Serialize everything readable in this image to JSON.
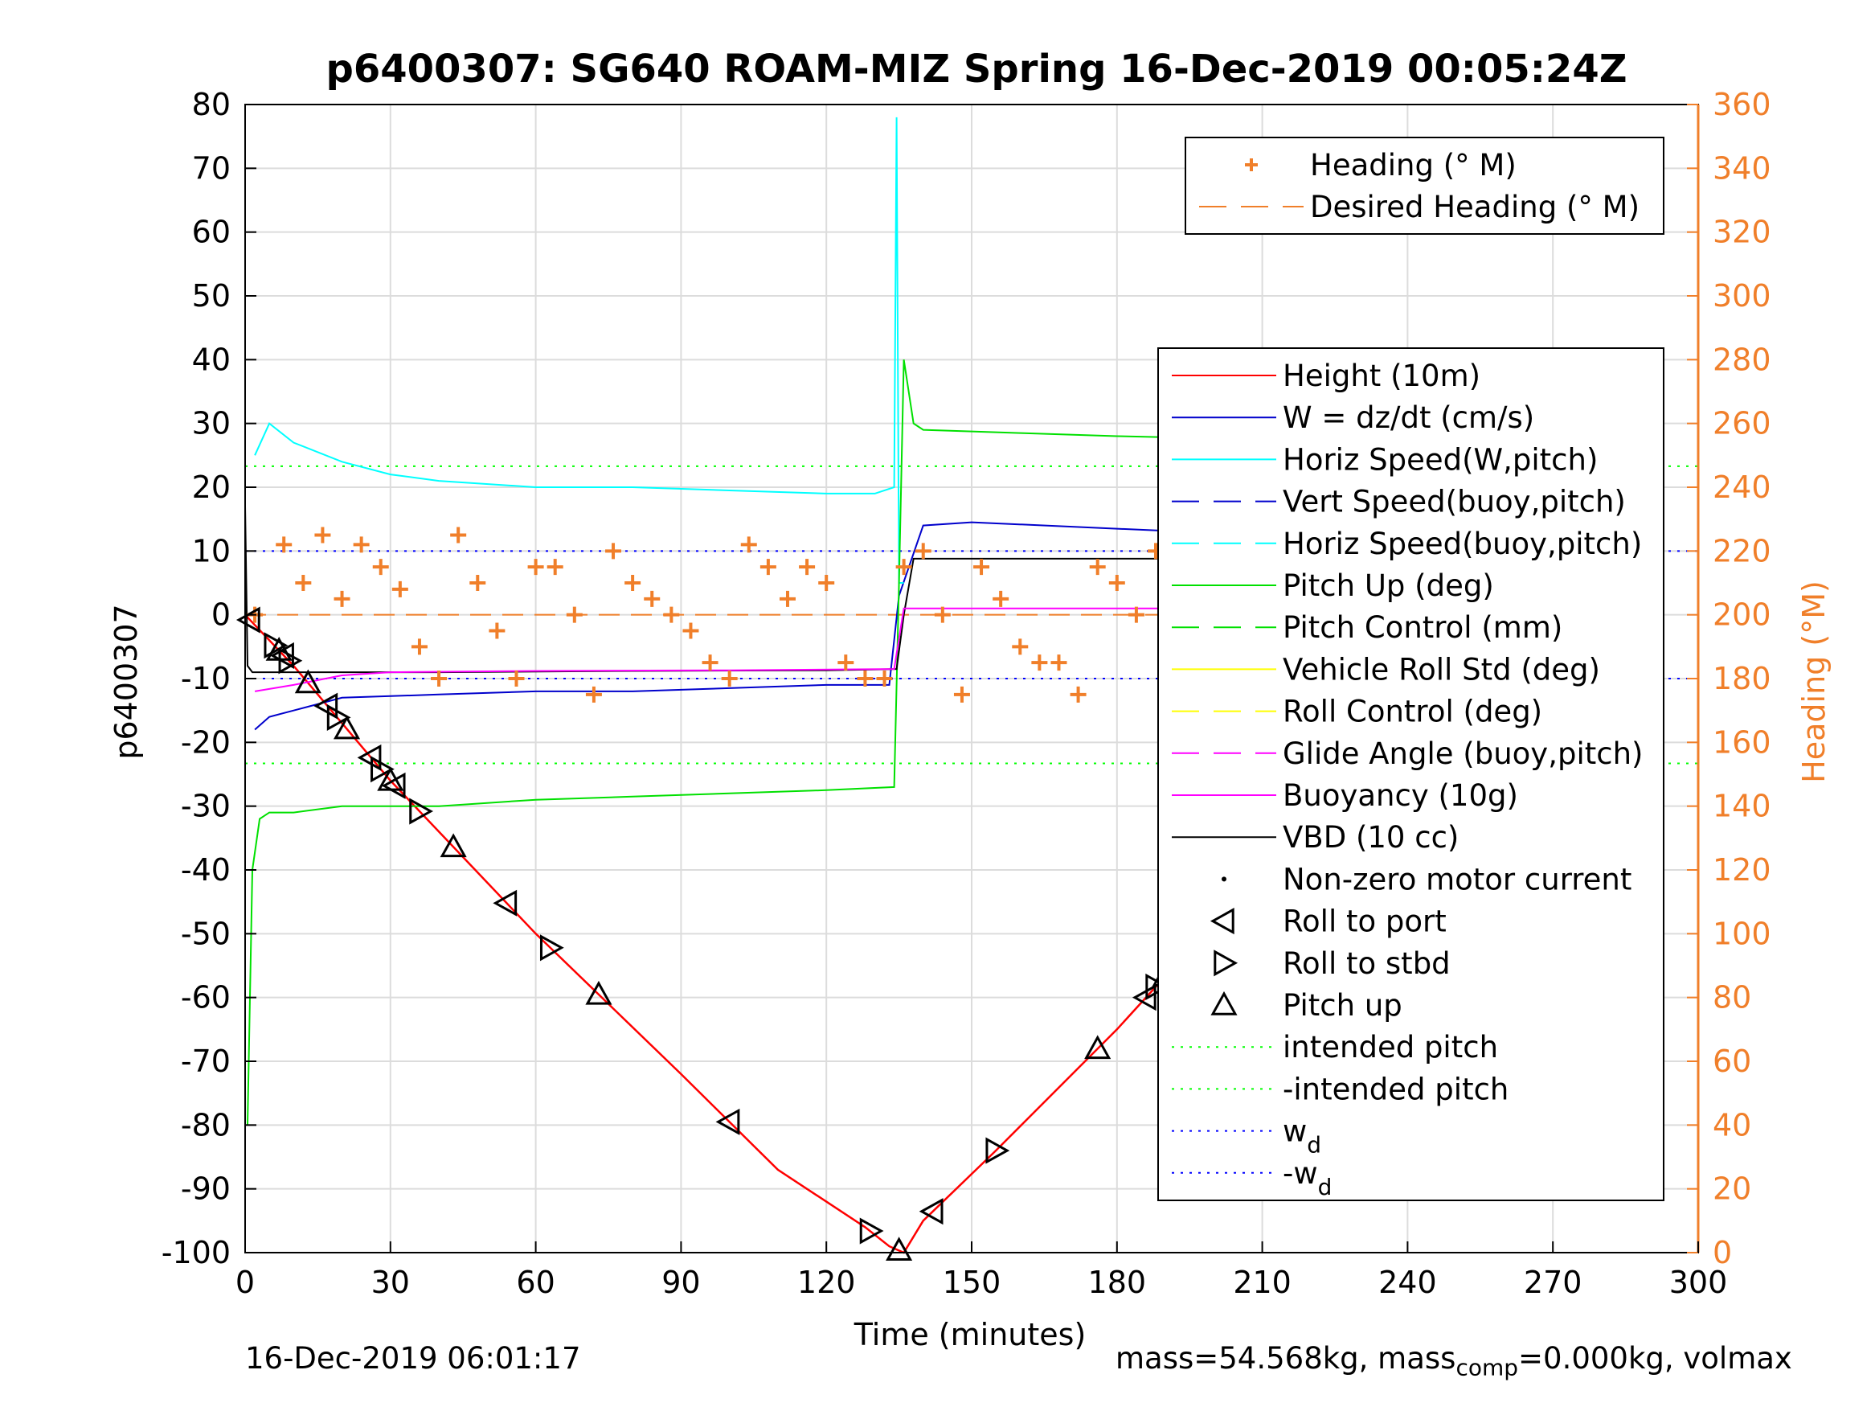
{
  "chart_data": {
    "type": "line",
    "title": "p6400307: SG640 ROAM-MIZ Spring 16-Dec-2019 00:05:24Z",
    "xlabel": "Time (minutes)",
    "ylabel": "p6400307",
    "y2label": "Heading (°M)",
    "xlim": [
      0,
      300
    ],
    "ylim": [
      -100,
      80
    ],
    "y2lim": [
      0,
      360
    ],
    "xticks": [
      "0",
      "30",
      "60",
      "90",
      "120",
      "150",
      "180",
      "210",
      "240",
      "270",
      "300"
    ],
    "yticks": [
      "-100",
      "-90",
      "-80",
      "-70",
      "-60",
      "-50",
      "-40",
      "-30",
      "-20",
      "-10",
      "0",
      "10",
      "20",
      "30",
      "40",
      "50",
      "60",
      "70",
      "80"
    ],
    "y2ticks": [
      "0",
      "20",
      "40",
      "60",
      "80",
      "100",
      "120",
      "140",
      "160",
      "180",
      "200",
      "220",
      "240",
      "260",
      "280",
      "300",
      "320",
      "340",
      "360"
    ],
    "grid": true,
    "colors": {
      "heading": "#f07f2a",
      "height": "#ff0000",
      "w": "#0000cc",
      "horiz_speed": "#00ffff",
      "pitch": "#00e000",
      "roll": "#ffff00",
      "glide": "#ff00ff",
      "vbd": "#000000"
    },
    "legend_top": [
      {
        "label": "Heading (° M)",
        "style": "plus",
        "color": "#f07f2a"
      },
      {
        "label": "Desired Heading (° M)",
        "style": "dash",
        "color": "#f07f2a"
      }
    ],
    "legend_main": [
      {
        "label": "Height (10m)",
        "style": "solid",
        "color": "#ff0000"
      },
      {
        "label": "W = dz/dt (cm/s)",
        "style": "solid",
        "color": "#0000cc"
      },
      {
        "label": "Horiz Speed(W,pitch)",
        "style": "solid",
        "color": "#00ffff"
      },
      {
        "label": "Vert Speed(buoy,pitch)",
        "style": "dash",
        "color": "#0000cc"
      },
      {
        "label": "Horiz Speed(buoy,pitch)",
        "style": "dash",
        "color": "#00ffff"
      },
      {
        "label": "Pitch Up (deg)",
        "style": "solid",
        "color": "#00e000"
      },
      {
        "label": "Pitch Control (mm)",
        "style": "dash",
        "color": "#00e000"
      },
      {
        "label": "Vehicle Roll Std (deg)",
        "style": "solid",
        "color": "#ffff00"
      },
      {
        "label": "Roll Control (deg)",
        "style": "dash",
        "color": "#ffff00"
      },
      {
        "label": "Glide Angle (buoy,pitch)",
        "style": "dash",
        "color": "#ff00ff"
      },
      {
        "label": "Buoyancy (10g)",
        "style": "solid",
        "color": "#ff00ff"
      },
      {
        "label": "VBD (10 cc)",
        "style": "solid",
        "color": "#000000"
      },
      {
        "label": "Non-zero motor current",
        "style": "dot",
        "color": "#000000"
      },
      {
        "label": "Roll to port",
        "style": "tri-left",
        "color": "#000000"
      },
      {
        "label": "Roll to stbd",
        "style": "tri-right",
        "color": "#000000"
      },
      {
        "label": "Pitch up",
        "style": "tri-up",
        "color": "#000000"
      },
      {
        "label": "intended pitch",
        "style": "dotted",
        "color": "#00ff00"
      },
      {
        "label": "-intended pitch",
        "style": "dotted",
        "color": "#00ff00"
      },
      {
        "label": "w",
        "sub": "d",
        "style": "dotted",
        "color": "#0000ff"
      },
      {
        "label": "-w",
        "sub": "d",
        "style": "dotted",
        "color": "#0000ff"
      }
    ],
    "reference_lines": {
      "intended_pitch": 23.3,
      "w_d": 10
    },
    "series": [
      {
        "name": "Height (10m)",
        "axis": "left",
        "x": [
          0,
          10,
          30,
          60,
          90,
          110,
          128,
          133,
          136,
          140,
          155,
          180,
          210,
          240,
          262,
          273
        ],
        "y": [
          0,
          -8,
          -26,
          -50,
          -72,
          -87,
          -96,
          -99,
          -100,
          -95,
          -84,
          -65,
          -40,
          -20,
          -8,
          -2
        ]
      },
      {
        "name": "W = dz/dt (cm/s)",
        "axis": "left",
        "x": [
          2,
          5,
          10,
          20,
          40,
          60,
          80,
          100,
          120,
          133,
          135,
          140,
          150,
          180,
          210,
          240,
          272
        ],
        "y": [
          -18,
          -16,
          -15,
          -13,
          -12.5,
          -12,
          -12,
          -11.5,
          -11,
          -11,
          3,
          14,
          14.5,
          13.5,
          12.5,
          11,
          10
        ]
      },
      {
        "name": "Horiz Speed(W,pitch)",
        "axis": "left",
        "x": [
          2,
          5,
          10,
          20,
          30,
          40,
          60,
          80,
          100,
          120,
          130,
          134,
          134.5,
          135,
          136
        ],
        "y": [
          25,
          30,
          27,
          24,
          22,
          21,
          20,
          20,
          19.5,
          19,
          19,
          20,
          78,
          5,
          5
        ]
      },
      {
        "name": "Pitch Up (deg)",
        "axis": "left",
        "x": [
          0.5,
          1.5,
          3,
          5,
          10,
          20,
          40,
          60,
          80,
          100,
          120,
          134,
          135,
          136,
          138,
          140,
          160,
          180,
          210,
          240,
          273
        ],
        "y": [
          -80,
          -40,
          -32,
          -31,
          -31,
          -30,
          -30,
          -29,
          -28.5,
          -28,
          -27.5,
          -27,
          5,
          40,
          30,
          29,
          28.5,
          28,
          27.5,
          27,
          27
        ]
      },
      {
        "name": "VBD (10 cc)",
        "axis": "left",
        "x": [
          0,
          0.5,
          1.5,
          40,
          80,
          120,
          134.5,
          136,
          138,
          180,
          240,
          273
        ],
        "y": [
          17,
          -8,
          -9,
          -9,
          -8.8,
          -8.7,
          -8.5,
          0,
          8.8,
          8.8,
          8.8,
          8.8
        ]
      },
      {
        "name": "Buoyancy (10g)",
        "axis": "left",
        "x": [
          2,
          10,
          20,
          30,
          60,
          100,
          134,
          136,
          273
        ],
        "y": [
          -12,
          -11,
          -9.5,
          -9,
          -8.8,
          -8.7,
          -8.5,
          1,
          1
        ]
      },
      {
        "name": "Heading (° M)",
        "axis": "right",
        "x": [
          2,
          8,
          12,
          16,
          20,
          24,
          28,
          32,
          36,
          40,
          44,
          48,
          52,
          56,
          60,
          64,
          68,
          72,
          76,
          80,
          84,
          88,
          92,
          96,
          100,
          104,
          108,
          112,
          116,
          120,
          124,
          128,
          132,
          136,
          140,
          144,
          148,
          152,
          156,
          160,
          164,
          168,
          172,
          176,
          180,
          184,
          188,
          192,
          196,
          200,
          204,
          208,
          212,
          216,
          220,
          224,
          228,
          232,
          236,
          240,
          244,
          248,
          252,
          256,
          260,
          264,
          268,
          272
        ],
        "y": [
          200,
          222,
          210,
          225,
          205,
          222,
          215,
          208,
          190,
          180,
          225,
          210,
          195,
          180,
          215,
          215,
          200,
          175,
          220,
          210,
          205,
          200,
          195,
          185,
          180,
          222,
          215,
          205,
          215,
          210,
          185,
          180,
          180,
          215,
          220,
          200,
          175,
          215,
          205,
          190,
          185,
          185,
          175,
          215,
          210,
          200,
          220,
          200,
          180,
          190,
          210,
          210,
          195,
          205,
          205,
          210,
          210,
          200,
          205,
          200,
          210,
          205,
          205,
          210,
          205,
          210,
          210,
          205
        ]
      }
    ]
  },
  "footer": {
    "left": "16-Dec-2019 06:01:17",
    "right_pre": "mass=54.568kg, mass",
    "right_sub": "comp",
    "right_post": "=0.000kg, volmax"
  }
}
